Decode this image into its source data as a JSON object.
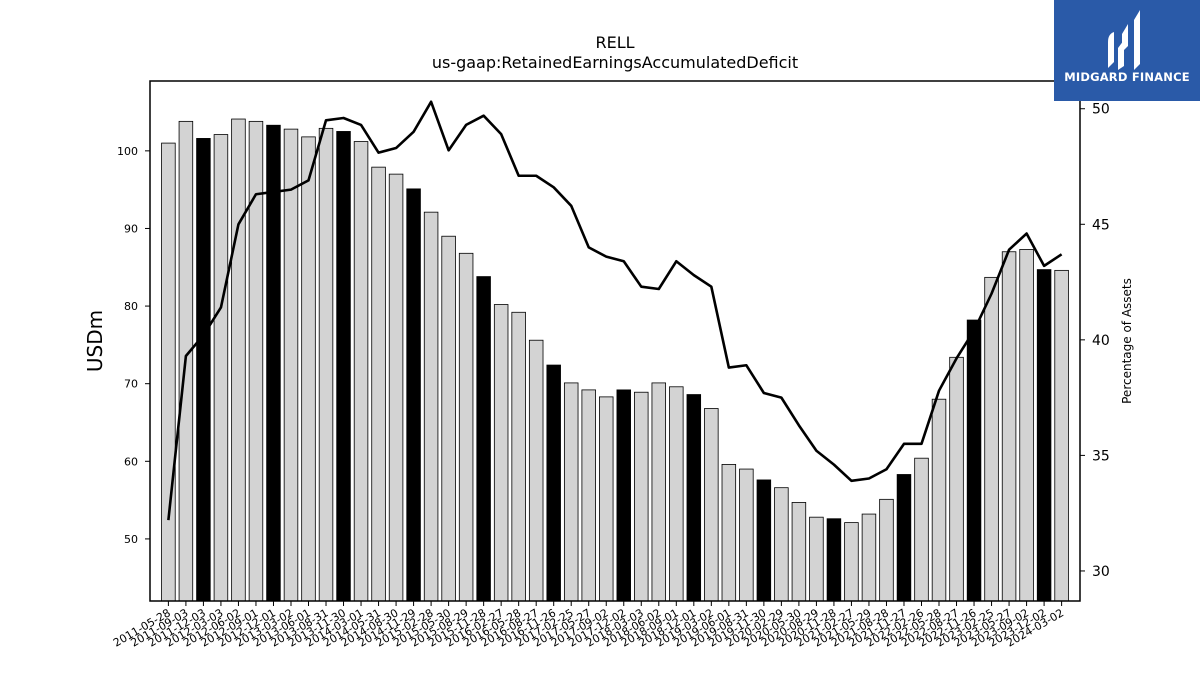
{
  "brand": {
    "name": "MIDGARD FINANCE",
    "icon": "midgard-logo-icon",
    "color": "#2a5aa8"
  },
  "chart_data": {
    "type": "bar",
    "title": "RELL",
    "subtitle": "us-gaap:RetainedEarningsAccumulatedDeficit",
    "ylabel": "USDm",
    "y2label": "Percentage of Assets",
    "ylim": [
      42,
      109
    ],
    "y2lim": [
      28.7,
      51.2
    ],
    "yticks": [
      50,
      60,
      70,
      80,
      90,
      100
    ],
    "y2ticks": [
      30,
      35,
      40,
      45,
      50
    ],
    "categories": [
      "2011-05-28",
      "2011-09-03",
      "2011-12-03",
      "2012-03-03",
      "2012-06-02",
      "2012-09-01",
      "2012-12-01",
      "2013-03-02",
      "2013-06-01",
      "2013-08-31",
      "2013-11-30",
      "2014-03-01",
      "2014-05-31",
      "2014-08-30",
      "2014-11-29",
      "2015-02-28",
      "2015-05-30",
      "2015-08-29",
      "2015-11-28",
      "2016-02-27",
      "2016-05-28",
      "2016-08-27",
      "2016-11-26",
      "2017-02-25",
      "2017-05-27",
      "2017-09-02",
      "2017-12-02",
      "2018-03-03",
      "2018-06-02",
      "2018-09-01",
      "2018-12-01",
      "2019-03-02",
      "2019-06-01",
      "2019-08-31",
      "2019-11-30",
      "2020-02-29",
      "2020-05-30",
      "2020-08-29",
      "2020-11-28",
      "2021-02-27",
      "2021-05-29",
      "2021-08-28",
      "2021-11-27",
      "2022-02-26",
      "2022-05-28",
      "2022-08-27",
      "2022-11-26",
      "2023-02-25",
      "2023-05-27",
      "2023-09-02",
      "2023-12-02",
      "2024-03-02"
    ],
    "series": [
      {
        "type": "bar",
        "values": [
          101,
          103.8,
          101.6,
          102.1,
          104.1,
          103.8,
          103.3,
          102.8,
          101.8,
          102.9,
          102.5,
          101.2,
          97.9,
          97,
          95.1,
          92.1,
          89,
          86.8,
          83.8,
          80.2,
          79.2,
          75.6,
          72.4,
          70.1,
          69.2,
          68.3,
          69.2,
          68.9,
          70.1,
          69.6,
          68.6,
          66.8,
          59.6,
          59,
          57.6,
          56.6,
          54.7,
          52.8,
          52.6,
          52.1,
          53.2,
          55.1,
          58.3,
          60.4,
          68,
          73.4,
          78.2,
          83.7,
          87,
          87.3,
          84.7,
          84.6
        ],
        "fill_default": "#d3d3d3",
        "fill_highlight": "#000000",
        "highlight_indices": [
          2,
          6,
          10,
          14,
          18,
          22,
          26,
          30,
          34,
          38,
          42,
          46,
          50
        ]
      },
      {
        "type": "line",
        "axis": "right",
        "values": [
          32.2,
          39.3,
          40.2,
          41.4,
          45,
          46.3,
          46.4,
          46.5,
          46.9,
          49.5,
          49.6,
          49.3,
          48.1,
          48.3,
          49,
          50.3,
          48.2,
          49.3,
          49.7,
          48.9,
          47.1,
          47.1,
          46.6,
          45.8,
          44,
          43.6,
          43.4,
          42.3,
          42.2,
          43.4,
          42.8,
          42.3,
          38.8,
          38.9,
          37.7,
          37.5,
          36.3,
          35.2,
          34.6,
          33.9,
          34,
          34.4,
          35.5,
          35.5,
          37.8,
          39.2,
          40.4,
          42,
          43.9,
          44.6,
          43.2,
          43.7
        ],
        "color": "#000000"
      }
    ]
  }
}
